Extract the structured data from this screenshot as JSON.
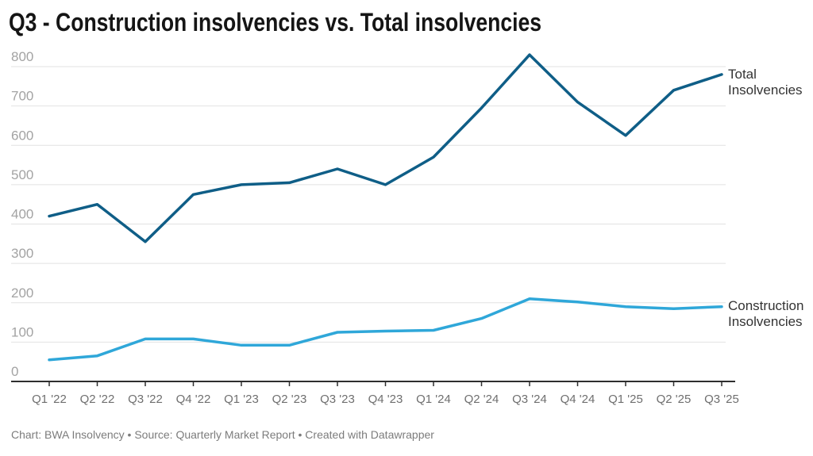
{
  "header": {
    "title": "Q3 - Construction insolvencies vs. Total insolvencies"
  },
  "footer": {
    "text": "Chart: BWA Insolvency • Source: Quarterly Market Report • Created with Datawrapper"
  },
  "colors": {
    "total_line": "#0f5e87",
    "construction_line": "#2fa7d9",
    "axis": "#2e2e2e",
    "gridline": "#e2e2e2",
    "y_tick_text": "#a3a3a3",
    "x_tick_text": "#6f6f6f",
    "series_label_text": "#333333",
    "footer_text": "#7c7c7c",
    "title_text": "#151515"
  },
  "chart_data": {
    "type": "line",
    "title": "Q3 - Construction insolvencies vs. Total insolvencies",
    "xlabel": "",
    "ylabel": "",
    "ylim": [
      0,
      800
    ],
    "ytick_step": 100,
    "grid": true,
    "legend_position": "right-of-line-ends",
    "categories": [
      "Q1 '22",
      "Q2 '22",
      "Q3 '22",
      "Q4 '22",
      "Q1 '23",
      "Q2 '23",
      "Q3 '23",
      "Q4 '23",
      "Q1 '24",
      "Q2 '24",
      "Q3 '24",
      "Q4 '24",
      "Q1 '25",
      "Q2 '25",
      "Q3 '25"
    ],
    "series": [
      {
        "name": "Total Insolvencies",
        "color": "#0f5e87",
        "values": [
          420,
          450,
          355,
          475,
          500,
          505,
          540,
          500,
          570,
          695,
          830,
          710,
          625,
          740,
          780
        ]
      },
      {
        "name": "Construction Insolvencies",
        "color": "#2fa7d9",
        "values": [
          55,
          65,
          108,
          108,
          92,
          92,
          125,
          128,
          130,
          160,
          210,
          202,
          190,
          185,
          190
        ]
      }
    ]
  }
}
